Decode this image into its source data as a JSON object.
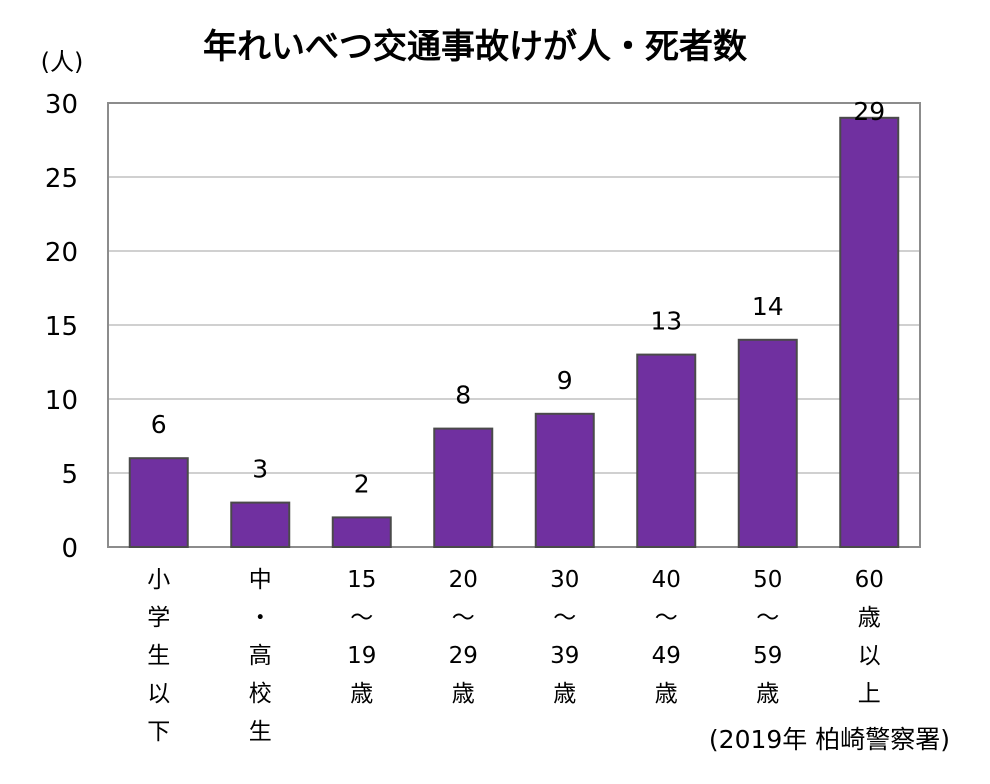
{
  "chart_data": {
    "type": "bar",
    "title": "年れいべつ交通事故けが人・死者数",
    "ylabel": "(人)",
    "source": "(2019年 柏崎警察署)",
    "ylim": [
      0,
      30
    ],
    "yticks": [
      0,
      5,
      10,
      15,
      20,
      25,
      30
    ],
    "grid": true,
    "bar_color": "#7030A0",
    "categories": [
      [
        "小",
        "学",
        "生",
        "以",
        "下"
      ],
      [
        "中",
        "・",
        "高",
        "校",
        "生"
      ],
      [
        "15",
        "～",
        "19",
        "歳"
      ],
      [
        "20",
        "～",
        "29",
        "歳"
      ],
      [
        "30",
        "～",
        "39",
        "歳"
      ],
      [
        "40",
        "～",
        "49",
        "歳"
      ],
      [
        "50",
        "～",
        "59",
        "歳"
      ],
      [
        "60",
        "歳",
        "以",
        "上"
      ]
    ],
    "values": [
      6,
      3,
      2,
      8,
      9,
      13,
      14,
      29
    ]
  }
}
